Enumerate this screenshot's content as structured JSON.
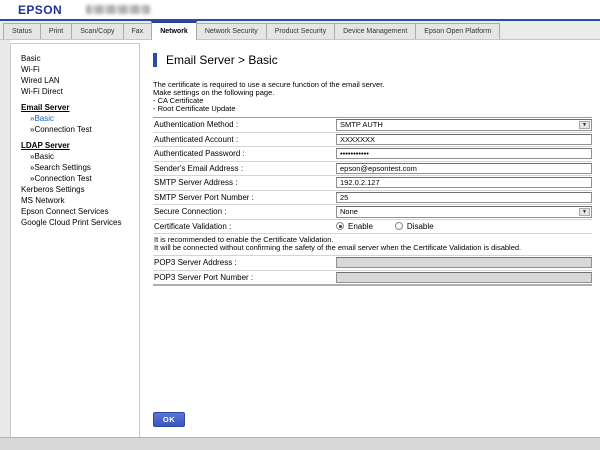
{
  "header": {
    "logo": "EPSON",
    "tabs": [
      {
        "label": "Status",
        "active": false
      },
      {
        "label": "Print",
        "active": false
      },
      {
        "label": "Scan/Copy",
        "active": false
      },
      {
        "label": "Fax",
        "active": false
      },
      {
        "label": "Network",
        "active": true
      },
      {
        "label": "Network Security",
        "active": false
      },
      {
        "label": "Product Security",
        "active": false
      },
      {
        "label": "Device Management",
        "active": false
      },
      {
        "label": "Epson Open Platform",
        "active": false
      }
    ]
  },
  "sidebar": {
    "items": [
      {
        "label": "Basic",
        "type": "item",
        "active": false
      },
      {
        "label": "Wi-Fi",
        "type": "item",
        "active": false
      },
      {
        "label": "Wired LAN",
        "type": "item",
        "active": false
      },
      {
        "label": "Wi-Fi Direct",
        "type": "item",
        "active": false
      },
      {
        "label": "Email Server",
        "type": "group",
        "active": false
      },
      {
        "label": "»Basic",
        "type": "sub",
        "active": true
      },
      {
        "label": "»Connection Test",
        "type": "sub",
        "active": false
      },
      {
        "label": "LDAP Server",
        "type": "group",
        "active": false
      },
      {
        "label": "»Basic",
        "type": "sub",
        "active": false
      },
      {
        "label": "»Search Settings",
        "type": "sub",
        "active": false
      },
      {
        "label": "»Connection Test",
        "type": "sub",
        "active": false
      },
      {
        "label": "Kerberos Settings",
        "type": "item",
        "active": false
      },
      {
        "label": "MS Network",
        "type": "item",
        "active": false
      },
      {
        "label": "Epson Connect Services",
        "type": "item",
        "active": false
      },
      {
        "label": "Google Cloud Print Services",
        "type": "item",
        "active": false
      }
    ]
  },
  "main": {
    "title": "Email Server > Basic",
    "intro_lines": [
      "The certificate is required to use a secure function of the email server.",
      "Make settings on the following page.",
      "- CA Certificate",
      "- Root Certificate Update"
    ],
    "form_rows": [
      {
        "name": "authentication-method",
        "label": "Authentication Method :",
        "type": "select",
        "value": "SMTP AUTH"
      },
      {
        "name": "authenticated-account",
        "label": "Authenticated Account :",
        "type": "text",
        "value": "XXXXXXX"
      },
      {
        "name": "authenticated-password",
        "label": "Authenticated Password :",
        "type": "password",
        "value": "•••••••••••"
      },
      {
        "name": "senders-email-address",
        "label": "Sender's Email Address :",
        "type": "text",
        "value": "epson@epsontest.com"
      },
      {
        "name": "smtp-server-address",
        "label": "SMTP Server Address :",
        "type": "text",
        "value": "192.0.2.127"
      },
      {
        "name": "smtp-server-port-number",
        "label": "SMTP Server Port Number :",
        "type": "text",
        "value": "25"
      },
      {
        "name": "secure-connection",
        "label": "Secure Connection :",
        "type": "select",
        "value": "None"
      },
      {
        "name": "certificate-validation",
        "label": "Certificate Validation :",
        "type": "radio",
        "options": [
          {
            "label": "Enable",
            "selected": true
          },
          {
            "label": "Disable",
            "selected": false
          }
        ]
      },
      {
        "name": "certificate-validation-note",
        "type": "note",
        "lines": [
          "It is recommended to enable the Certificate Validation.",
          "It will be connected without confirming the safety of the email server when the Certificate Validation is disabled."
        ]
      },
      {
        "name": "pop3-server-address",
        "label": "POP3 Server Address :",
        "type": "text",
        "value": "",
        "disabled": true
      },
      {
        "name": "pop3-server-port-number",
        "label": "POP3 Server Port Number :",
        "type": "text",
        "value": "",
        "disabled": true
      }
    ],
    "ok_label": "OK"
  },
  "colors": {
    "accent_blue": "#2b4aa5",
    "active_tab_blue": "#2b3f9e",
    "active_link_blue": "#0a64c8",
    "ok_button_blue": "#3a57c0"
  }
}
